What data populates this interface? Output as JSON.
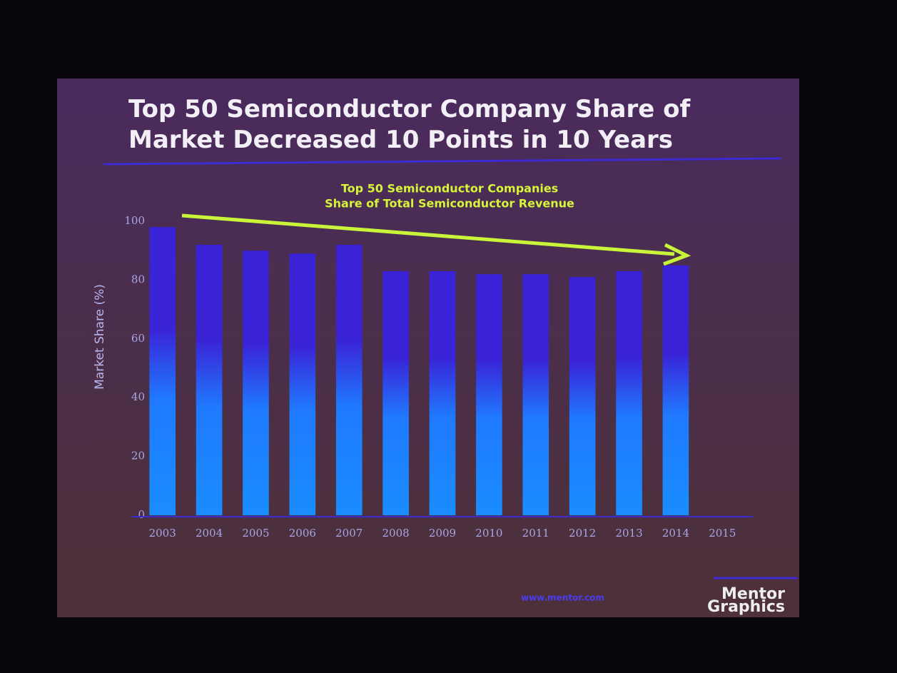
{
  "chart_data": {
    "type": "bar",
    "title": "Top 50 Semiconductor Company Share of Market Decreased 10 Points in 10 Years",
    "subtitle": [
      "Top 50 Semiconductor Companies",
      "Share of Total Semiconductor Revenue"
    ],
    "y_label": "Market Share (%)",
    "categories": [
      "2003",
      "2004",
      "2005",
      "2006",
      "2007",
      "2008",
      "2009",
      "2010",
      "2011",
      "2012",
      "2013",
      "2014",
      "2015"
    ],
    "values": [
      98,
      92,
      90,
      89,
      92,
      83,
      83,
      82,
      82,
      81,
      83,
      85,
      null
    ],
    "color": "#3a22d6",
    "ylim": [
      0,
      100
    ],
    "yticks": [
      0,
      20,
      40,
      60,
      80,
      100
    ],
    "grid": false
  },
  "footer": {
    "url": "www.mentor.com",
    "logo": [
      "Mentor",
      "Graphics"
    ]
  }
}
